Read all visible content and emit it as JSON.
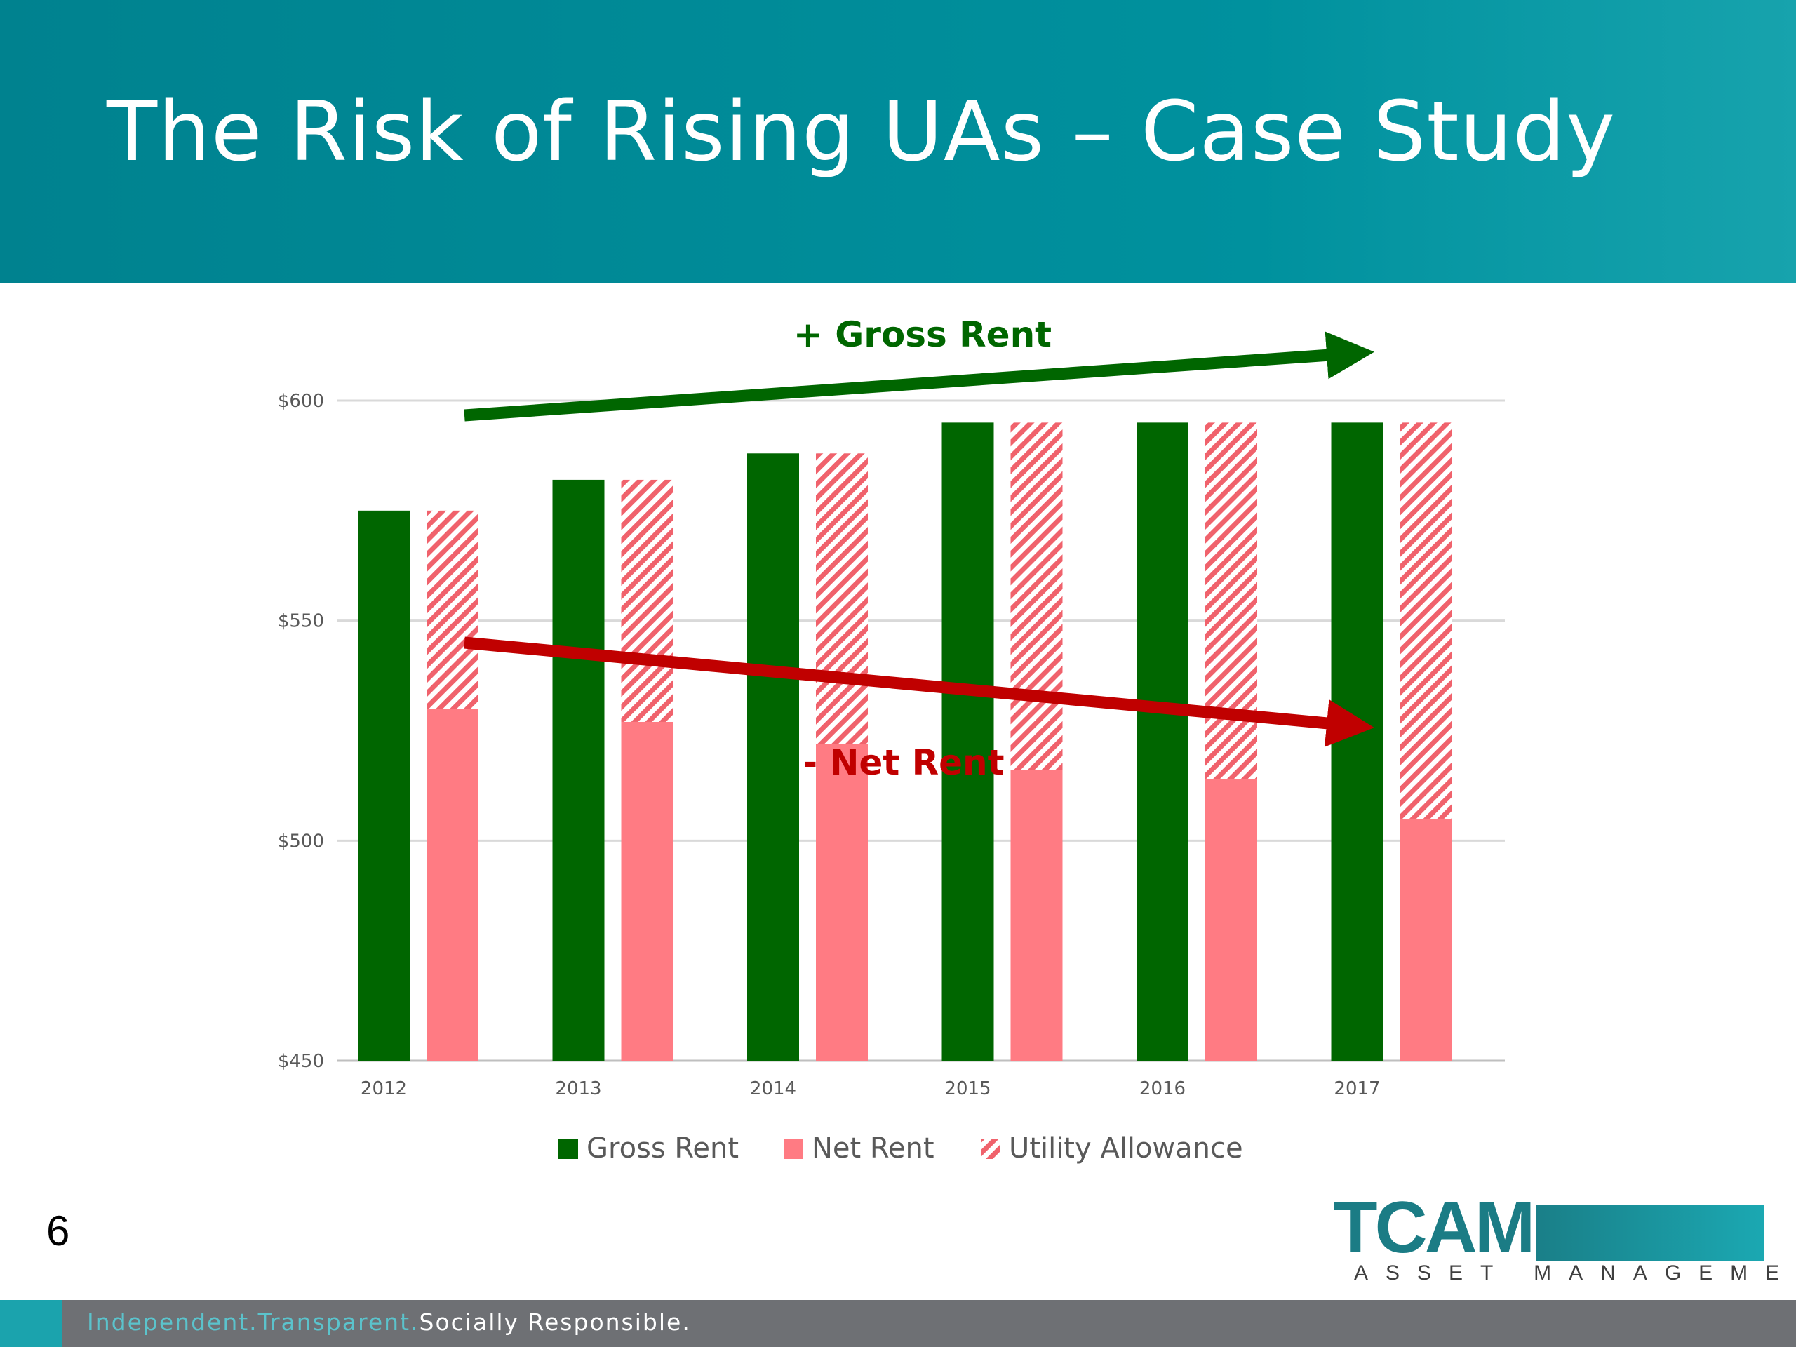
{
  "slide": {
    "title": "The Risk of Rising UAs – Case Study",
    "number": "6"
  },
  "logo": {
    "mark": "TCAM",
    "subtitle": "ASSET MANAGEMENT"
  },
  "footer": {
    "part1": "Independent.",
    "part2": "Transparent.",
    "part3": "Socially Responsible."
  },
  "colors": {
    "title_bar": "#00919e",
    "gross_rent": "#006600",
    "net_rent": "#ff7b83",
    "utility_hatch": "#f0626c",
    "arrow_up": "#006600",
    "arrow_down": "#c00000",
    "footer_bar": "#6e7074"
  },
  "chart_data": {
    "type": "bar",
    "categories": [
      "2012",
      "2013",
      "2014",
      "2015",
      "2016",
      "2017"
    ],
    "series": [
      {
        "name": "Gross Rent",
        "values": [
          575,
          582,
          588,
          595,
          595,
          595
        ]
      },
      {
        "name": "Net Rent",
        "values": [
          530,
          527,
          522,
          516,
          514,
          505
        ]
      },
      {
        "name": "Utility Allowance",
        "values": [
          45,
          55,
          66,
          79,
          81,
          90
        ],
        "stacked_on": "Net Rent",
        "pattern": "hatched"
      }
    ],
    "ylim": [
      450,
      600
    ],
    "yticks": [
      450,
      500,
      550,
      600
    ],
    "ytick_labels": [
      "$450",
      "$500",
      "$550",
      "$600"
    ],
    "grid": true,
    "legend_position": "bottom",
    "annotations": [
      {
        "text": "+ Gross Rent",
        "trend": "up",
        "color": "#006600"
      },
      {
        "text": "- Net Rent",
        "trend": "down",
        "color": "#c00000"
      }
    ]
  }
}
